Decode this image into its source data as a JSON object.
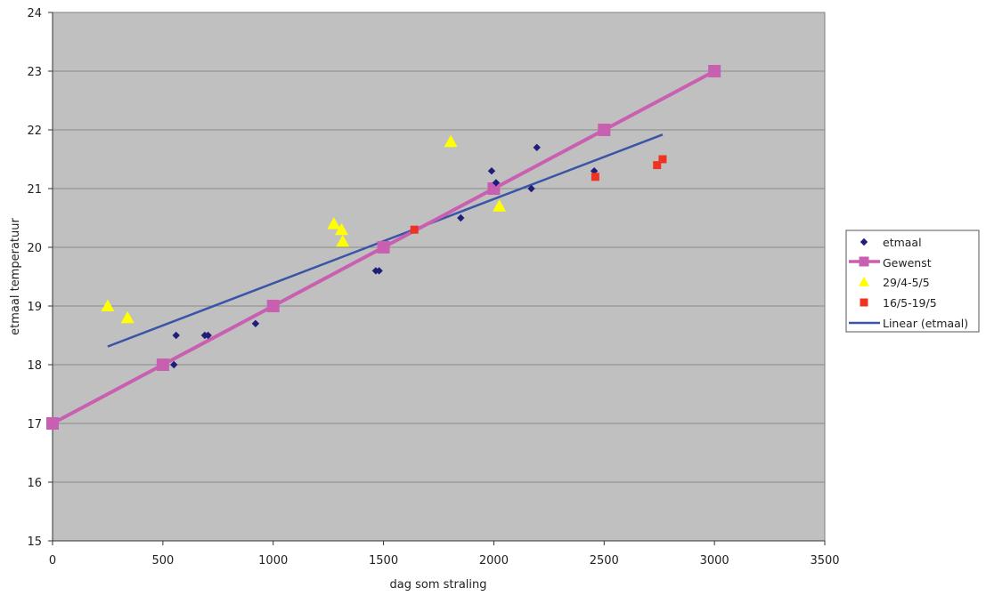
{
  "chart_data": {
    "type": "scatter",
    "title": "",
    "xlabel": "dag som straling",
    "ylabel": "etmaal temperatuur",
    "xlim": [
      0,
      3500
    ],
    "ylim": [
      15,
      24
    ],
    "xticks": [
      0,
      500,
      1000,
      1500,
      2000,
      2500,
      3000,
      3500
    ],
    "yticks": [
      15,
      16,
      17,
      18,
      19,
      20,
      21,
      22,
      23,
      24
    ],
    "xtick_labels": [
      "0",
      "500",
      "1000",
      "1500",
      "2000",
      "2500",
      "3000",
      "3500"
    ],
    "ytick_labels": [
      "15",
      "16",
      "17",
      "18",
      "19",
      "20",
      "21",
      "22",
      "23",
      "24"
    ],
    "grid": "horizontal",
    "legend_position": "right",
    "colors": {
      "plot_bg": "#c0c0c0",
      "gridline": "#8a8a8a",
      "etmaal": "#1f1f7a",
      "gewenst": "#c95fb0",
      "triangles": "#ffff00",
      "red": "#ee3322",
      "linear": "#3a55a5"
    },
    "series": [
      {
        "name": "etmaal",
        "marker": "diamond",
        "points": [
          [
            550,
            18.0
          ],
          [
            560,
            18.5
          ],
          [
            690,
            18.5
          ],
          [
            705,
            18.5
          ],
          [
            920,
            18.7
          ],
          [
            1465,
            19.6
          ],
          [
            1480,
            19.6
          ],
          [
            1850,
            20.5
          ],
          [
            1990,
            21.3
          ],
          [
            2010,
            21.1
          ],
          [
            2170,
            21.0
          ],
          [
            2195,
            21.7
          ],
          [
            2455,
            21.3
          ]
        ]
      },
      {
        "name": "Gewenst",
        "marker": "square-line",
        "points": [
          [
            0,
            17
          ],
          [
            500,
            18
          ],
          [
            1000,
            19
          ],
          [
            1500,
            20
          ],
          [
            2000,
            21
          ],
          [
            2500,
            22
          ],
          [
            3000,
            23
          ]
        ]
      },
      {
        "name": "29/4-5/5",
        "marker": "triangle",
        "points": [
          [
            250,
            19.0
          ],
          [
            340,
            18.8
          ],
          [
            1275,
            20.4
          ],
          [
            1310,
            20.3
          ],
          [
            1315,
            20.1
          ],
          [
            1805,
            21.8
          ],
          [
            2025,
            20.7
          ]
        ]
      },
      {
        "name": "16/5-19/5",
        "marker": "square",
        "points": [
          [
            1640,
            20.3
          ],
          [
            2460,
            21.2
          ],
          [
            2740,
            21.4
          ],
          [
            2765,
            21.5
          ]
        ]
      },
      {
        "name": "Linear (etmaal)",
        "marker": "line",
        "points": [
          [
            250,
            18.31
          ],
          [
            2765,
            21.92
          ]
        ]
      }
    ]
  }
}
